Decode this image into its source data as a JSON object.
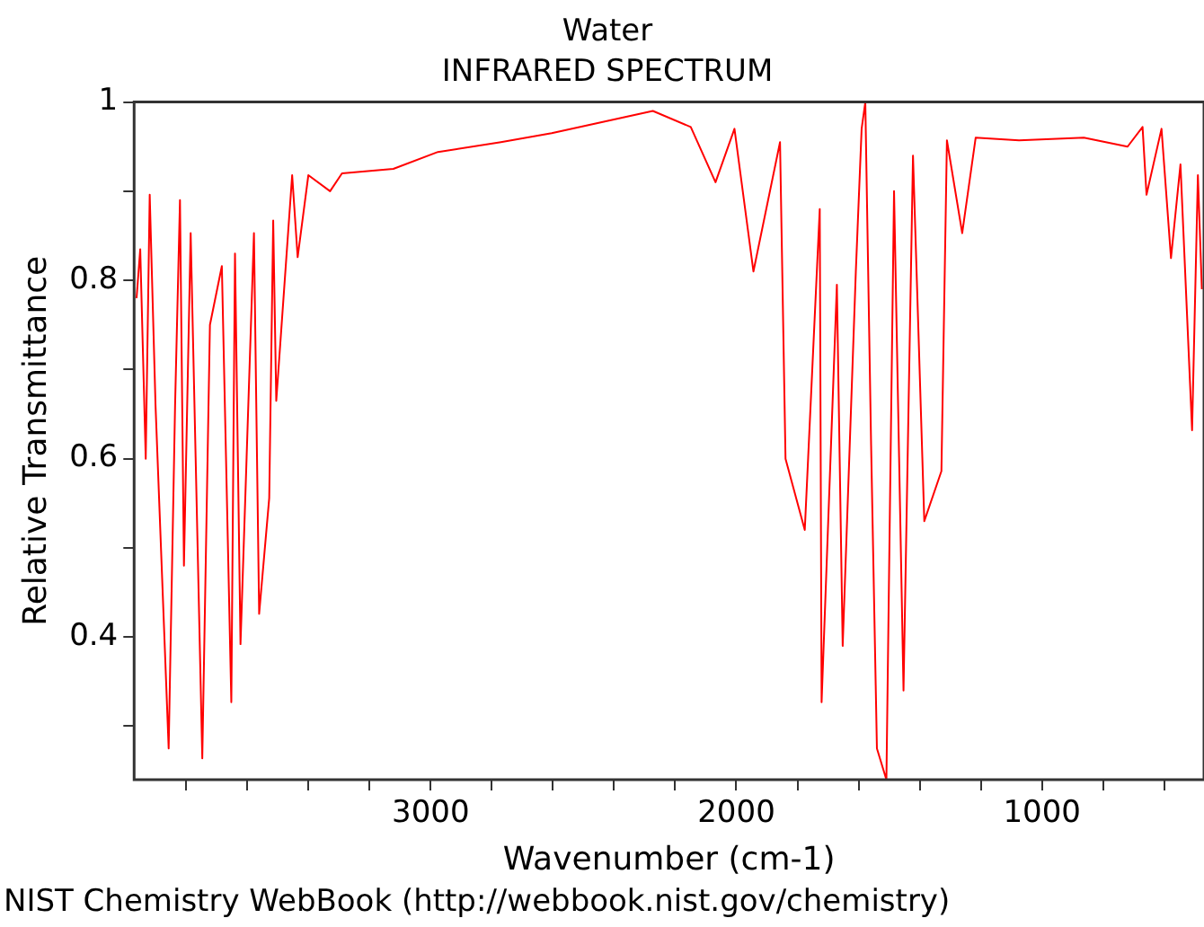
{
  "chart_data": {
    "type": "line",
    "title": "Water",
    "subtitle": "INFRARED SPECTRUM",
    "xlabel": "Wavenumber (cm-1)",
    "ylabel": "Relative Transmittance",
    "annotations": [
      "NIST Chemistry WebBook (http://webbook.nist.gov/chemistry)"
    ],
    "xlim": [
      3970,
      470
    ],
    "ylim": [
      0.24,
      1
    ],
    "xticks": [
      {
        "value": 3800,
        "label": null
      },
      {
        "value": 3600,
        "label": null
      },
      {
        "value": 3400,
        "label": null
      },
      {
        "value": 3200,
        "label": null
      },
      3000,
      {
        "value": 2800,
        "label": null
      },
      {
        "value": 2600,
        "label": null
      },
      {
        "value": 2400,
        "label": null
      },
      {
        "value": 2200,
        "label": null
      },
      2000,
      {
        "value": 1800,
        "label": null
      },
      {
        "value": 1600,
        "label": null
      },
      {
        "value": 1400,
        "label": null
      },
      {
        "value": 1200,
        "label": null
      },
      1000,
      {
        "value": 800,
        "label": null
      },
      {
        "value": 600,
        "label": null
      }
    ],
    "yticks": [
      {
        "value": 0.3,
        "label": null
      },
      0.4,
      {
        "value": 0.5,
        "label": null
      },
      0.6,
      {
        "value": 0.7,
        "label": null
      },
      0.8,
      {
        "value": 0.9,
        "label": null
      },
      1
    ],
    "grid": false,
    "legend": false,
    "marker": "none",
    "line_style": "solid",
    "series": [
      {
        "color": "#ff0000",
        "x": [
          3962,
          3950,
          3932,
          3919,
          3900,
          3857,
          3836,
          3820,
          3807,
          3785,
          3747,
          3722,
          3683,
          3652,
          3640,
          3622,
          3578,
          3561,
          3528,
          3515,
          3505,
          3453,
          3435,
          3400,
          3329,
          3290,
          3122,
          2976,
          2770,
          2604,
          2273,
          2149,
          2068,
          2006,
          1944,
          1857,
          1839,
          1776,
          1727,
          1721,
          1671,
          1652,
          1609,
          1590,
          1578,
          1559,
          1540,
          1509,
          1484,
          1453,
          1422,
          1385,
          1329,
          1311,
          1261,
          1217,
          1075,
          863,
          720,
          671,
          658,
          609,
          578,
          547,
          509,
          490,
          477
        ],
        "values": [
          0.78,
          0.835,
          0.6,
          0.896,
          0.66,
          0.275,
          0.66,
          0.89,
          0.48,
          0.853,
          0.264,
          0.75,
          0.816,
          0.327,
          0.83,
          0.392,
          0.853,
          0.426,
          0.556,
          0.867,
          0.665,
          0.918,
          0.826,
          0.918,
          0.9,
          0.92,
          0.925,
          0.944,
          0.955,
          0.965,
          0.99,
          0.972,
          0.91,
          0.97,
          0.81,
          0.955,
          0.6,
          0.52,
          0.88,
          0.327,
          0.795,
          0.39,
          0.81,
          0.97,
          1,
          0.615,
          0.275,
          0.24,
          0.9,
          0.34,
          0.94,
          0.53,
          0.586,
          0.957,
          0.853,
          0.96,
          0.957,
          0.96,
          0.95,
          0.972,
          0.896,
          0.97,
          0.825,
          0.93,
          0.632,
          0.918,
          0.79
        ]
      }
    ]
  }
}
